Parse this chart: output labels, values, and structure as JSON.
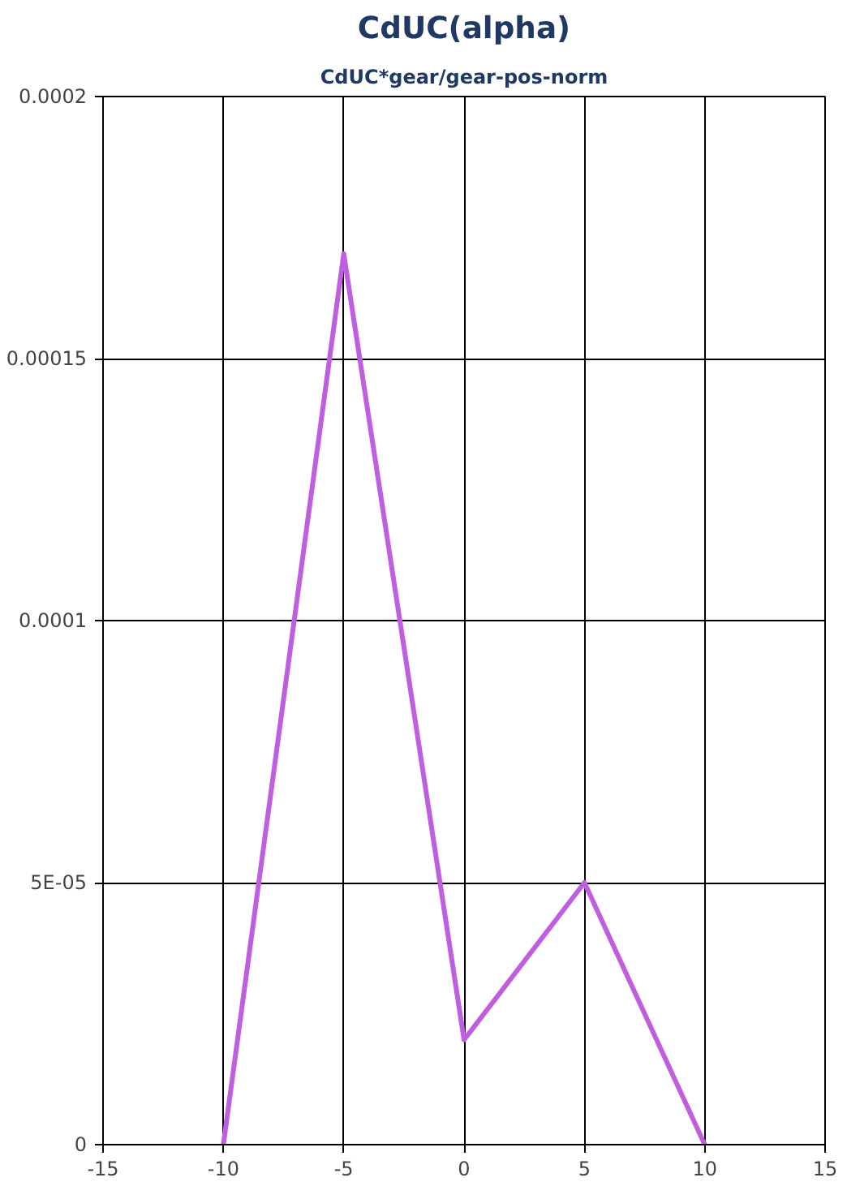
{
  "chart_data": {
    "type": "line",
    "title": "CdUC(alpha)",
    "subtitle": "CdUC*gear/gear-pos-norm",
    "x": [
      -10,
      -5,
      0,
      5,
      10
    ],
    "series": [
      {
        "color": "#bf5fdf",
        "values": [
          0,
          0.00017,
          2e-05,
          5e-05,
          0
        ]
      }
    ],
    "xlim": [
      -15,
      15
    ],
    "xticks": [
      -15,
      -10,
      -5,
      0,
      5,
      10,
      15
    ],
    "ylim": [
      0,
      0.0002
    ],
    "yticks": [
      0,
      {
        "value": 5e-05,
        "label": "5E-05"
      },
      {
        "value": 0.0001,
        "label": "0.0001"
      },
      {
        "value": 0.00015,
        "label": "0.00015"
      },
      {
        "value": 0.0002,
        "label": "0.0002"
      }
    ],
    "grid": true,
    "marker": "none",
    "line_style": "solid"
  }
}
